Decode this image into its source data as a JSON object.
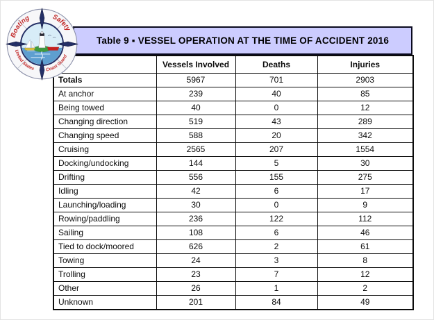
{
  "title_bar": {
    "background_color": "#ccccff",
    "border_color": "#0a0a1e"
  },
  "chart_data": {
    "type": "table",
    "title": "Table 9 ▪ VESSEL OPERATION AT THE TIME OF ACCIDENT 2016",
    "columns": [
      "",
      "Vessels Involved",
      "Deaths",
      "Injuries"
    ],
    "rows": [
      [
        "Totals",
        "5967",
        "701",
        "2903"
      ],
      [
        "At anchor",
        "239",
        "40",
        "85"
      ],
      [
        "Being towed",
        "40",
        "0",
        "12"
      ],
      [
        "Changing direction",
        "519",
        "43",
        "289"
      ],
      [
        "Changing speed",
        "588",
        "20",
        "342"
      ],
      [
        "Cruising",
        "2565",
        "207",
        "1554"
      ],
      [
        "Docking/undocking",
        "144",
        "5",
        "30"
      ],
      [
        "Drifting",
        "556",
        "155",
        "275"
      ],
      [
        "Idling",
        "42",
        "6",
        "17"
      ],
      [
        "Launching/loading",
        "30",
        "0",
        "9"
      ],
      [
        "Rowing/paddling",
        "236",
        "122",
        "112"
      ],
      [
        "Sailing",
        "108",
        "6",
        "46"
      ],
      [
        "Tied to dock/moored",
        "626",
        "2",
        "61"
      ],
      [
        "Towing",
        "24",
        "3",
        "8"
      ],
      [
        "Trolling",
        "23",
        "7",
        "12"
      ],
      [
        "Other",
        "26",
        "1",
        "2"
      ],
      [
        "Unknown",
        "201",
        "84",
        "49"
      ]
    ],
    "bold_rows": [
      0
    ],
    "grid": true,
    "layout": "header row on top, row labels in first column, numeric values centered"
  },
  "logo": {
    "description": "US Coast Guard boating safety life-ring emblem with lighthouse scene",
    "text_top_left": "Boating",
    "text_top_right": "Safety",
    "text_bottom_left": "United States",
    "text_bottom_right": "Coast Guard",
    "colors": {
      "ring": "#f7f7f9",
      "navy": "#232f66",
      "red": "#c22a2a",
      "sky": "#d8edf8",
      "water": "#5e9fd0",
      "island": "#3f9a3f",
      "boat_red": "#c32222",
      "hull_yellow": "#d8c040"
    }
  }
}
